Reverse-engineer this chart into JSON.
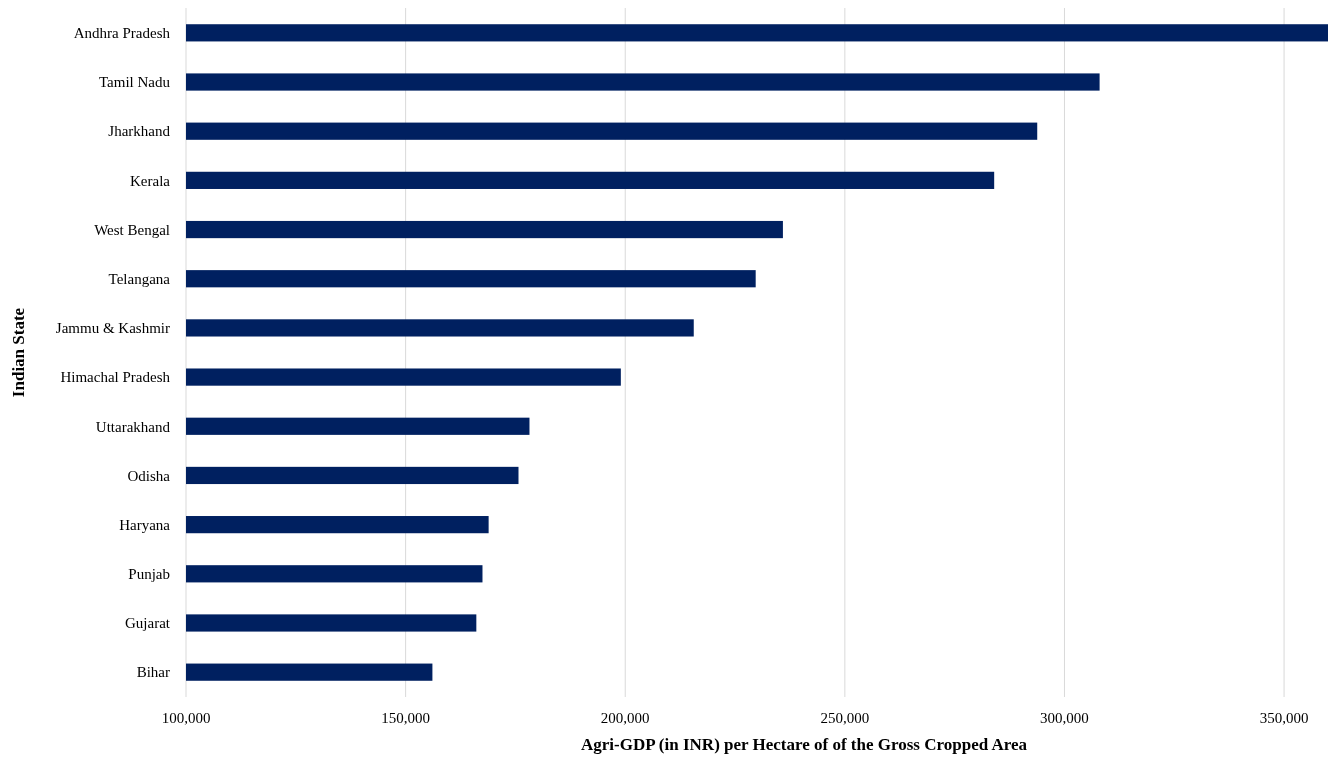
{
  "chart_data": {
    "type": "bar",
    "orientation": "horizontal",
    "xlabel": "Agri-GDP (in INR) per Hectare of of the Gross Cropped Area",
    "ylabel": "Indian State",
    "categories": [
      "Andhra Pradesh",
      "Tamil Nadu",
      "Jharkhand",
      "Kerala",
      "West Bengal",
      "Telangana",
      "Jammu & Kashmir",
      "Himachal Pradesh",
      "Uttarakhand",
      "Odisha",
      "Haryana",
      "Punjab",
      "Gujarat",
      "Bihar"
    ],
    "values": [
      360000,
      308000,
      293800,
      284000,
      235900,
      229700,
      215600,
      199000,
      178200,
      175700,
      168900,
      167500,
      166100,
      156100
    ],
    "color": "#002060",
    "xlim": [
      100000,
      360000
    ],
    "xticks": [
      {
        "value": 100000,
        "label": "100,000"
      },
      {
        "value": 150000,
        "label": "150,000"
      },
      {
        "value": 200000,
        "label": "200,000"
      },
      {
        "value": 250000,
        "label": "250,000"
      },
      {
        "value": 300000,
        "label": "300,000"
      },
      {
        "value": 350000,
        "label": "350,000"
      }
    ],
    "grid": "x"
  }
}
